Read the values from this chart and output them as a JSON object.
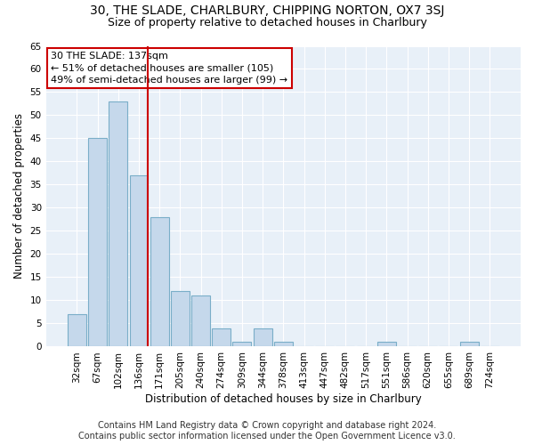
{
  "title": "30, THE SLADE, CHARLBURY, CHIPPING NORTON, OX7 3SJ",
  "subtitle": "Size of property relative to detached houses in Charlbury",
  "xlabel": "Distribution of detached houses by size in Charlbury",
  "ylabel": "Number of detached properties",
  "bin_labels": [
    "32sqm",
    "67sqm",
    "102sqm",
    "136sqm",
    "171sqm",
    "205sqm",
    "240sqm",
    "274sqm",
    "309sqm",
    "344sqm",
    "378sqm",
    "413sqm",
    "447sqm",
    "482sqm",
    "517sqm",
    "551sqm",
    "586sqm",
    "620sqm",
    "655sqm",
    "689sqm",
    "724sqm"
  ],
  "bar_values": [
    7,
    45,
    53,
    37,
    28,
    12,
    11,
    4,
    1,
    4,
    1,
    0,
    0,
    0,
    0,
    1,
    0,
    0,
    0,
    1,
    0
  ],
  "bar_color": "#c5d8eb",
  "bar_edge_color": "#7aaec8",
  "ylim": [
    0,
    65
  ],
  "yticks": [
    0,
    5,
    10,
    15,
    20,
    25,
    30,
    35,
    40,
    45,
    50,
    55,
    60,
    65
  ],
  "marker_bin_index": 3,
  "marker_color": "#cc0000",
  "annotation_text": "30 THE SLADE: 137sqm\n← 51% of detached houses are smaller (105)\n49% of semi-detached houses are larger (99) →",
  "annotation_box_color": "#ffffff",
  "annotation_border_color": "#cc0000",
  "footer_line1": "Contains HM Land Registry data © Crown copyright and database right 2024.",
  "footer_line2": "Contains public sector information licensed under the Open Government Licence v3.0.",
  "background_color": "#e8f0f8",
  "title_fontsize": 10,
  "subtitle_fontsize": 9,
  "axis_label_fontsize": 8.5,
  "tick_fontsize": 7.5,
  "annotation_fontsize": 8,
  "footer_fontsize": 7
}
